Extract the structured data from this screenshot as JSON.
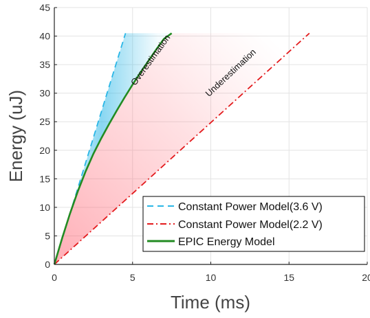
{
  "chart_data": {
    "type": "line",
    "xlabel": "Time (ms)",
    "ylabel": "Energy (uJ)",
    "xlim": [
      0,
      20
    ],
    "ylim": [
      0,
      45
    ],
    "xticks": [
      "0",
      "5",
      "10",
      "15",
      "20"
    ],
    "yticks": [
      "0",
      "5",
      "10",
      "15",
      "20",
      "25",
      "30",
      "35",
      "40",
      "45"
    ],
    "grid": true,
    "legend_position": "bottom-right",
    "series": [
      {
        "name": "Constant Power Model(3.6 V)",
        "style": "dashed",
        "color": "#29b6e6",
        "x": [
          0,
          4.55
        ],
        "y": [
          0,
          40.5
        ]
      },
      {
        "name": "Constant Power Model(2.2 V)",
        "style": "dashdot",
        "color": "#e31a1c",
        "x": [
          0,
          16.3
        ],
        "y": [
          0,
          40.5
        ]
      },
      {
        "name": "EPIC Energy Model",
        "style": "solid",
        "color": "#228b22",
        "x": [
          0,
          0.5,
          1.0,
          1.5,
          2.0,
          2.5,
          3.0,
          3.5,
          4.0,
          4.5,
          5.0,
          5.5,
          6.0,
          6.5,
          7.0,
          7.5
        ],
        "y": [
          0,
          4.6,
          8.9,
          12.8,
          16.3,
          19.4,
          22.1,
          24.6,
          27.0,
          29.3,
          31.5,
          33.6,
          35.6,
          37.6,
          39.5,
          40.5
        ]
      }
    ],
    "annotations": [
      "Overestimation",
      "Underestimation"
    ]
  }
}
